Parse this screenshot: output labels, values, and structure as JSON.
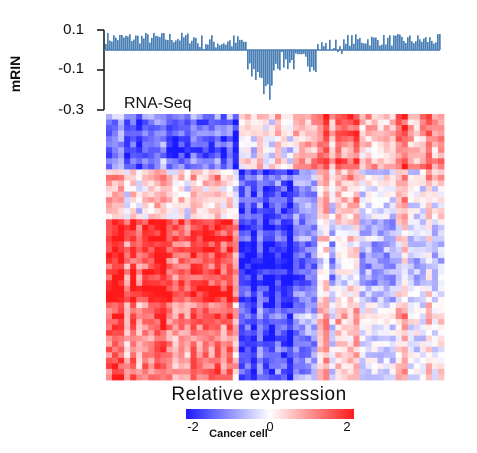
{
  "caption": "Cancer cell",
  "chart_data": [
    {
      "type": "bar",
      "ylabel": "mRIN",
      "yticks": [
        0.1,
        -0.1,
        -0.3
      ],
      "ylim": [
        -0.3,
        0.1
      ],
      "annotation": "RNA-Seq",
      "color": "#4a7fb5",
      "segments": [
        {
          "from": 0,
          "to": 0.27,
          "level": 0.06,
          "spread": 0.03
        },
        {
          "from": 0.27,
          "to": 0.42,
          "level": 0.04,
          "spread": 0.04
        },
        {
          "from": 0.42,
          "to": 0.47,
          "level": -0.12,
          "spread": 0.06
        },
        {
          "from": 0.47,
          "to": 0.5,
          "level": -0.21,
          "spread": 0.05
        },
        {
          "from": 0.5,
          "to": 0.63,
          "level": -0.06,
          "spread": 0.05
        },
        {
          "from": 0.63,
          "to": 0.72,
          "level": 0.02,
          "spread": 0.04
        },
        {
          "from": 0.72,
          "to": 1.0,
          "level": 0.05,
          "spread": 0.03
        }
      ]
    },
    {
      "type": "heatmap",
      "legend_title": "Relative expression",
      "colorscale": {
        "low": "#1a1aff",
        "mid": "#ffffff",
        "high": "#ff1a1a"
      },
      "legend_tick_labels": [
        "-2",
        "0",
        "2"
      ],
      "row_blocks": [
        {
          "from": 0.0,
          "to": 0.2,
          "values": {
            "left": -0.7,
            "middle": 0.1,
            "right": 0.5
          }
        },
        {
          "from": 0.2,
          "to": 0.4,
          "values": {
            "left": 0.2,
            "middle": -0.6,
            "right": 0.2
          }
        },
        {
          "from": 0.4,
          "to": 0.7,
          "values": {
            "left": 0.8,
            "middle": -0.8,
            "right": -0.1
          }
        },
        {
          "from": 0.7,
          "to": 1.0,
          "values": {
            "left": 0.5,
            "middle": -0.7,
            "right": 0.1
          }
        }
      ],
      "col_blocks": [
        {
          "from": 0.0,
          "to": 0.4,
          "key": "left"
        },
        {
          "from": 0.4,
          "to": 0.62,
          "key": "middle"
        },
        {
          "from": 0.62,
          "to": 1.0,
          "key": "right"
        }
      ]
    }
  ]
}
